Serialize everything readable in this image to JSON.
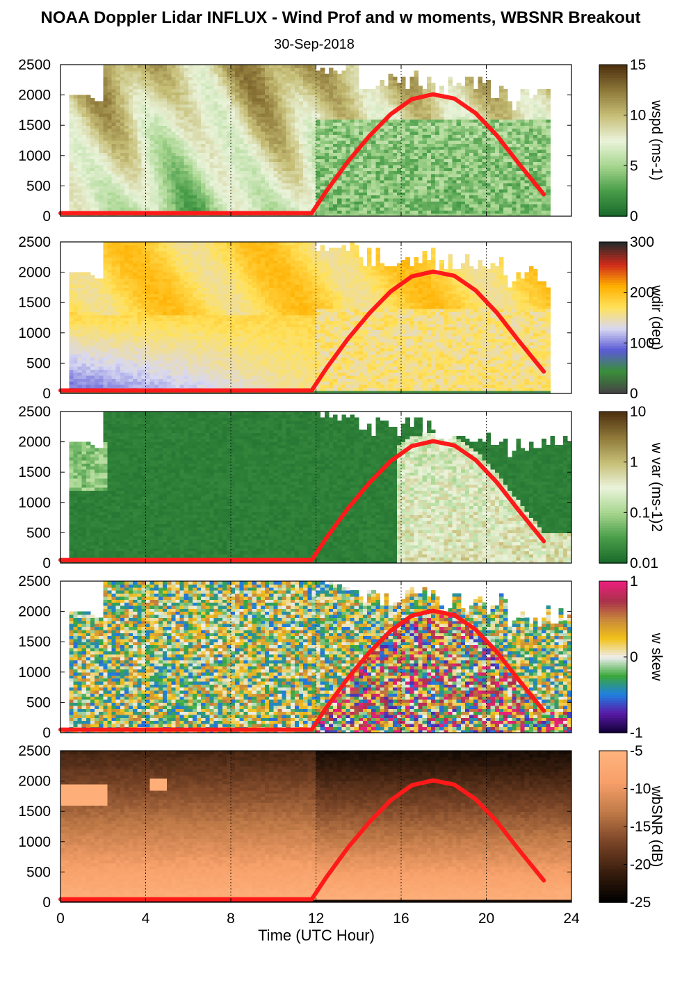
{
  "chart_data": {
    "type": "heatmap",
    "title": "NOAA Doppler Lidar INFLUX - Wind Prof and w moments, WBSNR Breakout",
    "subtitle": "30-Sep-2018",
    "xlabel": "Time (UTC Hour)",
    "xlim": [
      0,
      24
    ],
    "xticks": [
      "0",
      "4",
      "8",
      "12",
      "16",
      "20",
      "24"
    ],
    "ylim": [
      0,
      2500
    ],
    "yticks": [
      "0",
      "500",
      "1000",
      "1500",
      "2000",
      "2500"
    ],
    "overlay": {
      "color": "#ff1a1a",
      "description": "boundary layer height curve",
      "x": [
        0,
        11.8,
        12.5,
        13.5,
        14.5,
        15.5,
        16.5,
        17.5,
        18.5,
        19.5,
        20.5,
        21.5,
        22.7
      ],
      "y": [
        50,
        50,
        420,
        900,
        1320,
        1680,
        1930,
        2010,
        1940,
        1700,
        1330,
        880,
        360
      ]
    },
    "panels": [
      {
        "variable": "wspd",
        "colorbar_label": "wspd (ms-1)",
        "colorbar_ticks": [
          "0",
          "5",
          "10",
          "15"
        ],
        "colormap": [
          "#1a6b2c",
          "#4a9e4a",
          "#a8d690",
          "#eaf3da",
          "#c7bf78",
          "#8f7a3a",
          "#4f3310"
        ]
      },
      {
        "variable": "wdir",
        "colorbar_label": "wdir (deg)",
        "colorbar_ticks": [
          "0",
          "100",
          "200",
          "300"
        ],
        "colormap": [
          "#444444",
          "#3a8f3a",
          "#5b5bd6",
          "#d8d8f2",
          "#ffe15a",
          "#ffb000",
          "#d02b1a",
          "#2a2a2a"
        ]
      },
      {
        "variable": "w var",
        "colorbar_label": "w var (ms-1)2",
        "colorbar_ticks": [
          "0.01",
          "0.1",
          "1",
          "10"
        ],
        "colormap": [
          "#1a6b2c",
          "#4a9e4a",
          "#a8d690",
          "#eaf3da",
          "#c7bf78",
          "#8f7a3a",
          "#4f3310"
        ]
      },
      {
        "variable": "w skew",
        "colorbar_label": "w skew",
        "colorbar_ticks": [
          "-1",
          "0",
          "1"
        ],
        "colormap": [
          "#14003a",
          "#5a1aa8",
          "#1f7fe0",
          "#3aa83a",
          "#eeeeee",
          "#f2c21a",
          "#c98a3a",
          "#a8324a",
          "#e8207a"
        ]
      },
      {
        "variable": "wbSNR",
        "colorbar_label": "wbSNR (dB)",
        "colorbar_ticks": [
          "-25",
          "-20",
          "-15",
          "-10",
          "-5"
        ],
        "colormap": [
          "#000000",
          "#3a1e0e",
          "#7a4527",
          "#c07a48",
          "#f7a06a",
          "#ffb27c"
        ]
      }
    ]
  }
}
